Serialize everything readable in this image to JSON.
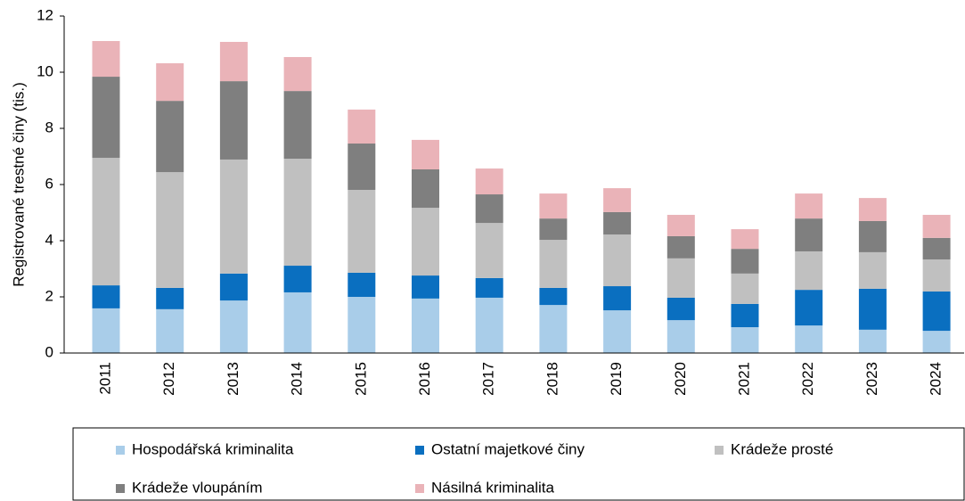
{
  "chart_data": {
    "type": "stacked_bar",
    "ylabel": "Registrované trestné činy (tis.)",
    "categories": [
      "2011",
      "2012",
      "2013",
      "2014",
      "2015",
      "2016",
      "2017",
      "2018",
      "2019",
      "2020",
      "2021",
      "2022",
      "2023",
      "2024"
    ],
    "series": [
      {
        "name": "Hospodářská kriminalita",
        "color": "#a9cde9",
        "values": [
          1.59,
          1.56,
          1.87,
          2.16,
          2.0,
          1.94,
          1.97,
          1.71,
          1.52,
          1.17,
          0.92,
          0.98,
          0.83,
          0.79
        ]
      },
      {
        "name": "Ostatní majetkové činy",
        "color": "#0a6fc0",
        "values": [
          0.82,
          0.76,
          0.96,
          0.95,
          0.86,
          0.82,
          0.7,
          0.61,
          0.86,
          0.8,
          0.83,
          1.27,
          1.46,
          1.4
        ]
      },
      {
        "name": "Krádeže prosté",
        "color": "#c0c0c0",
        "values": [
          4.54,
          4.12,
          4.06,
          3.81,
          2.95,
          2.41,
          1.96,
          1.71,
          1.84,
          1.4,
          1.08,
          1.37,
          1.3,
          1.14
        ]
      },
      {
        "name": "Krádeže vloupáním",
        "color": "#7f7f7f",
        "values": [
          2.89,
          2.54,
          2.79,
          2.41,
          1.65,
          1.37,
          1.02,
          0.76,
          0.8,
          0.79,
          0.88,
          1.17,
          1.11,
          0.77
        ]
      },
      {
        "name": "Násilná kriminalita",
        "color": "#eab3b8",
        "values": [
          1.27,
          1.34,
          1.4,
          1.21,
          1.21,
          1.05,
          0.92,
          0.89,
          0.85,
          0.76,
          0.7,
          0.89,
          0.82,
          0.82
        ]
      }
    ],
    "ylim": [
      0,
      12
    ],
    "yticks": [
      0,
      2,
      4,
      6,
      8,
      10,
      12
    ],
    "grid": false,
    "legend": "bottom"
  }
}
